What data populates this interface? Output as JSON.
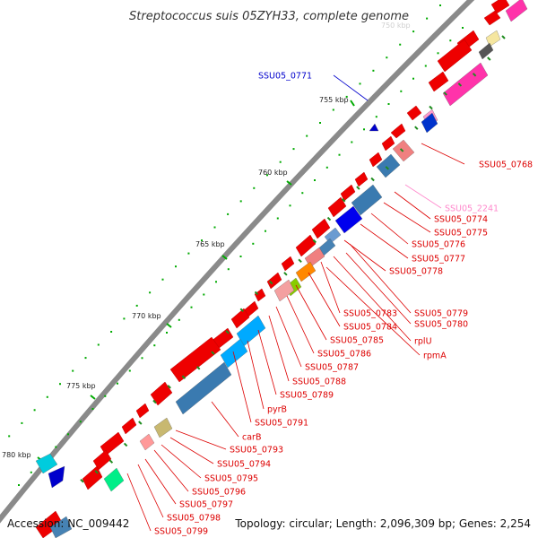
{
  "title": "Streptococcus suis 05ZYH33, complete genome",
  "accession": "Accession: NC_009442",
  "summary": "Topology: circular; Length: 2,096,309 bp; Genes: 2,254",
  "faint_tick": "750 kbp",
  "ticks": [
    "755 kbp",
    "760 kbp",
    "765 kbp",
    "770 kbp",
    "775 kbp",
    "780 kbp"
  ],
  "gene_labels": [
    {
      "text": "SSU05_0771",
      "color": "#0000cc"
    },
    {
      "text": "SSU05_0768",
      "color": "#dd0000"
    },
    {
      "text": "SSU05_2241",
      "color": "#ff88cc"
    },
    {
      "text": "SSU05_0774",
      "color": "#dd0000"
    },
    {
      "text": "SSU05_0775",
      "color": "#dd0000"
    },
    {
      "text": "SSU05_0776",
      "color": "#dd0000"
    },
    {
      "text": "SSU05_0777",
      "color": "#dd0000"
    },
    {
      "text": "SSU05_0778",
      "color": "#dd0000"
    },
    {
      "text": "SSU05_0779",
      "color": "#dd0000"
    },
    {
      "text": "SSU05_0780",
      "color": "#dd0000"
    },
    {
      "text": "SSU05_0783",
      "color": "#dd0000"
    },
    {
      "text": "rplU",
      "color": "#dd0000"
    },
    {
      "text": "SSU05_0784",
      "color": "#dd0000"
    },
    {
      "text": "rpmA",
      "color": "#dd0000"
    },
    {
      "text": "SSU05_0785",
      "color": "#dd0000"
    },
    {
      "text": "SSU05_0786",
      "color": "#dd0000"
    },
    {
      "text": "SSU05_0787",
      "color": "#dd0000"
    },
    {
      "text": "SSU05_0788",
      "color": "#dd0000"
    },
    {
      "text": "SSU05_0789",
      "color": "#dd0000"
    },
    {
      "text": "pyrB",
      "color": "#dd0000"
    },
    {
      "text": "SSU05_0791",
      "color": "#dd0000"
    },
    {
      "text": "carB",
      "color": "#dd0000"
    },
    {
      "text": "SSU05_0793",
      "color": "#dd0000"
    },
    {
      "text": "SSU05_0794",
      "color": "#dd0000"
    },
    {
      "text": "SSU05_0795",
      "color": "#dd0000"
    },
    {
      "text": "SSU05_0796",
      "color": "#dd0000"
    },
    {
      "text": "SSU05_0797",
      "color": "#dd0000"
    },
    {
      "text": "SSU05_0798",
      "color": "#dd0000"
    },
    {
      "text": "SSU05_0799",
      "color": "#dd0000"
    }
  ],
  "colors": {
    "forward_gene": "#ee0000",
    "backbone": "#8a8a8a",
    "gc_skew": "#1e8c1e",
    "tick_line": "#00aa00",
    "label_red": "#dd0000",
    "label_blue": "#0000cc",
    "label_pink": "#ff88cc"
  }
}
